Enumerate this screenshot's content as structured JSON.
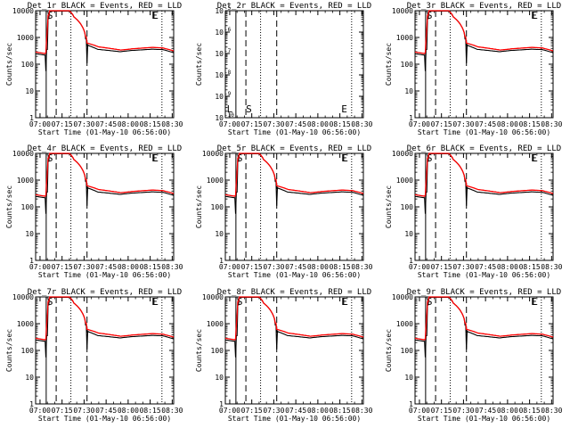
{
  "chart_data": [
    {
      "type": "line",
      "title": "Det_1r BLACK = Events, RED = LLD",
      "xlabel": "Start Time (01-May-10 06:56:00)",
      "ylabel": "Counts/sec",
      "yscale": "log",
      "ylim": [
        1,
        12000
      ],
      "yticks": [
        "1",
        "10",
        "100",
        "1000",
        "10000"
      ],
      "xticks": [
        "07:00",
        "07:15",
        "07:30",
        "07:45",
        "08:00",
        "08:15",
        "08:30"
      ],
      "annotations": [
        "S",
        "E"
      ],
      "series": [
        {
          "name": "Events",
          "color": "#000000",
          "profile": "normal",
          "values": []
        },
        {
          "name": "LLD",
          "color": "#ff0000",
          "profile": "normal",
          "values": []
        }
      ]
    },
    {
      "type": "line",
      "title": "Det_2r BLACK = Events, RED = LLD",
      "xlabel": "Start Time (01-May-10 06:56:00)",
      "ylabel": "Counts/sec",
      "yscale": "log",
      "ylim": [
        1e-10,
        1e-05
      ],
      "yticks": [
        "10^-10",
        "10^-9",
        "10^-8",
        "10^-7",
        "10^-6",
        "10^-5"
      ],
      "xticks": [
        "07:00",
        "07:15",
        "07:30",
        "07:45",
        "08:00",
        "08:15",
        "08:30"
      ],
      "annotations": [
        "S",
        "E"
      ],
      "series": []
    },
    {
      "type": "line",
      "title": "Det_3r BLACK = Events, RED = LLD",
      "xlabel": "Start Time (01-May-10 06:56:00)",
      "ylabel": "Counts/sec",
      "yscale": "log",
      "ylim": [
        1,
        12000
      ],
      "yticks": [
        "1",
        "10",
        "100",
        "1000",
        "10000"
      ],
      "xticks": [
        "07:00",
        "07:15",
        "07:30",
        "07:45",
        "08:00",
        "08:15",
        "08:30"
      ],
      "annotations": [
        "S",
        "E"
      ],
      "series": [
        {
          "name": "Events",
          "color": "#000000",
          "profile": "normal",
          "values": []
        },
        {
          "name": "LLD",
          "color": "#ff0000",
          "profile": "normal",
          "values": []
        }
      ]
    },
    {
      "type": "line",
      "title": "Det_4r BLACK = Events, RED = LLD",
      "xlabel": "Start Time (01-May-10 06:56:00)",
      "ylabel": "Counts/sec",
      "yscale": "log",
      "ylim": [
        1,
        12000
      ],
      "yticks": [
        "1",
        "10",
        "100",
        "1000",
        "10000"
      ],
      "xticks": [
        "07:00",
        "07:15",
        "07:30",
        "07:45",
        "08:00",
        "08:15",
        "08:30"
      ],
      "annotations": [
        "S",
        "E"
      ],
      "series": [
        {
          "name": "Events",
          "color": "#000000",
          "profile": "normal",
          "values": []
        },
        {
          "name": "LLD",
          "color": "#ff0000",
          "profile": "normal",
          "values": []
        }
      ]
    },
    {
      "type": "line",
      "title": "Det_5r BLACK = Events, RED = LLD",
      "xlabel": "Start Time (01-May-10 06:56:00)",
      "ylabel": "Counts/sec",
      "yscale": "log",
      "ylim": [
        1,
        12000
      ],
      "yticks": [
        "1",
        "10",
        "100",
        "1000",
        "10000"
      ],
      "xticks": [
        "07:00",
        "07:15",
        "07:30",
        "07:45",
        "08:00",
        "08:15",
        "08:30"
      ],
      "annotations": [
        "S",
        "E"
      ],
      "series": [
        {
          "name": "Events",
          "color": "#000000",
          "profile": "normal",
          "values": []
        },
        {
          "name": "LLD",
          "color": "#ff0000",
          "profile": "normal",
          "values": []
        }
      ]
    },
    {
      "type": "line",
      "title": "Det_6r BLACK = Events, RED = LLD",
      "xlabel": "Start Time (01-May-10 06:56:00)",
      "ylabel": "Counts/sec",
      "yscale": "log",
      "ylim": [
        1,
        12000
      ],
      "yticks": [
        "1",
        "10",
        "100",
        "1000",
        "10000"
      ],
      "xticks": [
        "07:00",
        "07:15",
        "07:30",
        "07:45",
        "08:00",
        "08:15",
        "08:30"
      ],
      "annotations": [
        "S",
        "E"
      ],
      "series": [
        {
          "name": "Events",
          "color": "#000000",
          "profile": "normal",
          "values": []
        },
        {
          "name": "LLD",
          "color": "#ff0000",
          "profile": "normal",
          "values": []
        }
      ]
    },
    {
      "type": "line",
      "title": "Det_7r BLACK = Events, RED = LLD",
      "xlabel": "Start Time (01-May-10 06:56:00)",
      "ylabel": "Counts/sec",
      "yscale": "log",
      "ylim": [
        1,
        12000
      ],
      "yticks": [
        "1",
        "10",
        "100",
        "1000",
        "10000"
      ],
      "xticks": [
        "07:00",
        "07:15",
        "07:30",
        "07:45",
        "08:00",
        "08:15",
        "08:30"
      ],
      "annotations": [
        "S",
        "E"
      ],
      "series": [
        {
          "name": "Events",
          "color": "#000000",
          "profile": "normal",
          "values": []
        },
        {
          "name": "LLD",
          "color": "#ff0000",
          "profile": "normal",
          "values": []
        }
      ]
    },
    {
      "type": "line",
      "title": "Det_8r BLACK = Events, RED = LLD",
      "xlabel": "Start Time (01-May-10 06:56:00)",
      "ylabel": "Counts/sec",
      "yscale": "log",
      "ylim": [
        1,
        12000
      ],
      "yticks": [
        "1",
        "10",
        "100",
        "1000",
        "10000"
      ],
      "xticks": [
        "07:00",
        "07:15",
        "07:30",
        "07:45",
        "08:00",
        "08:15",
        "08:30"
      ],
      "annotations": [
        "S",
        "E"
      ],
      "series": [
        {
          "name": "Events",
          "color": "#000000",
          "profile": "normal",
          "values": []
        },
        {
          "name": "LLD",
          "color": "#ff0000",
          "profile": "normal",
          "values": []
        }
      ]
    },
    {
      "type": "line",
      "title": "Det_9r BLACK = Events, RED = LLD",
      "xlabel": "Start Time (01-May-10 06:56:00)",
      "ylabel": "Counts/sec",
      "yscale": "log",
      "ylim": [
        1,
        12000
      ],
      "yticks": [
        "1",
        "10",
        "100",
        "1000",
        "10000"
      ],
      "xticks": [
        "07:00",
        "07:15",
        "07:30",
        "07:45",
        "08:00",
        "08:15",
        "08:30"
      ],
      "annotations": [
        "S",
        "E"
      ],
      "series": [
        {
          "name": "Events",
          "color": "#000000",
          "profile": "normal",
          "values": []
        },
        {
          "name": "LLD",
          "color": "#ff0000",
          "profile": "normal",
          "values": []
        }
      ]
    }
  ]
}
